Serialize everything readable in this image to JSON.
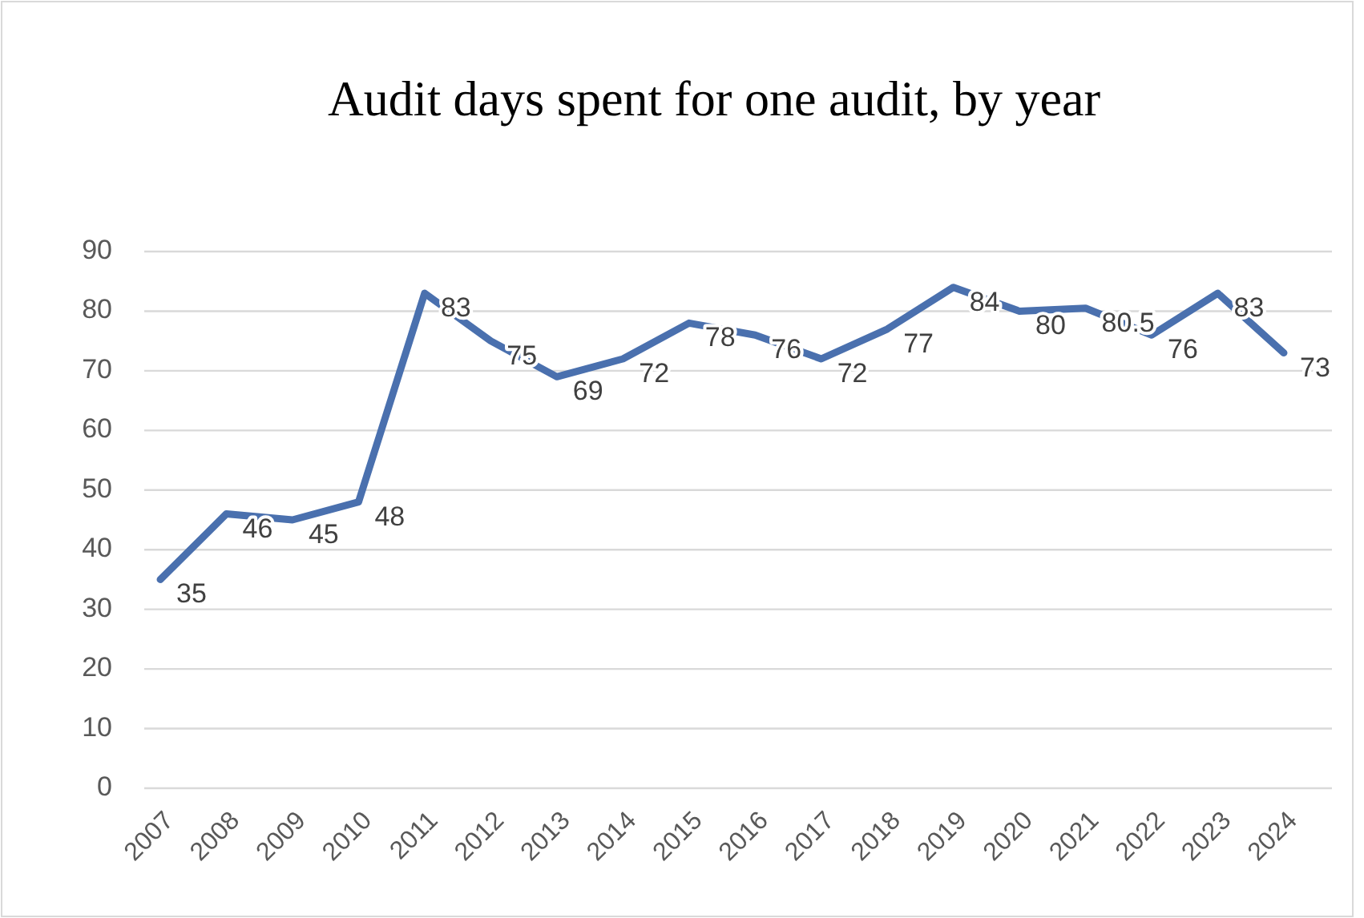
{
  "chart_data": {
    "type": "line",
    "title": "Audit days spent for one audit, by year",
    "categories": [
      "2007",
      "2008",
      "2009",
      "2010",
      "2011",
      "2012",
      "2013",
      "2014",
      "2015",
      "2016",
      "2017",
      "2018",
      "2019",
      "2020",
      "2021",
      "2022",
      "2023",
      "2024"
    ],
    "series": [
      {
        "color": "#4a70ae",
        "values": [
          35,
          46,
          45,
          48,
          83,
          75,
          69,
          72,
          78,
          76,
          72,
          77,
          84,
          80,
          80.5,
          76,
          83,
          73
        ]
      }
    ],
    "ylim": [
      0,
      90
    ],
    "yticks": [
      0,
      10,
      20,
      30,
      40,
      50,
      60,
      70,
      80,
      90
    ],
    "grid": "y",
    "data_labels": true,
    "marker": "none",
    "line_style": "solid"
  }
}
